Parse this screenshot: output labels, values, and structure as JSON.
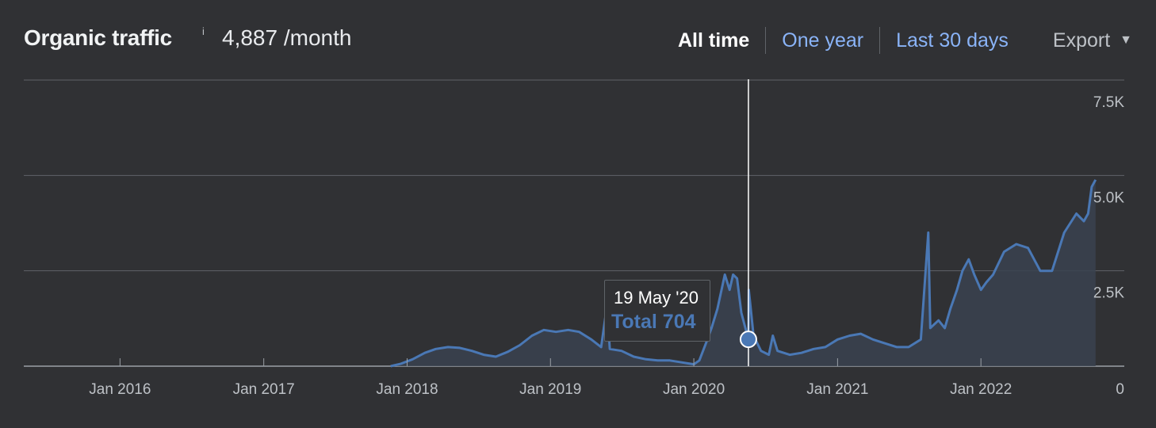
{
  "header": {
    "title": "Organic traffic",
    "info_icon": "i",
    "value": "4,887 /month"
  },
  "tabs": [
    {
      "label": "All time",
      "active": true
    },
    {
      "label": "One year",
      "active": false
    },
    {
      "label": "Last 30 days",
      "active": false
    }
  ],
  "export": {
    "label": "Export",
    "icon": "caret-down-icon"
  },
  "colors": {
    "line": "#4a78b5",
    "area": "#3a4250",
    "grid": "#5f6368",
    "background": "#303134"
  },
  "tooltip": {
    "date": "19 May '20",
    "total": "Total 704"
  },
  "chart_data": {
    "type": "area",
    "title": "Organic traffic",
    "y_axis_side": "right",
    "ylim": [
      0,
      7500
    ],
    "yticks": [
      7500,
      5000,
      2500,
      0
    ],
    "ytick_labels": [
      "7.5K",
      "5.0K",
      "2.5K",
      "0"
    ],
    "xlim": [
      "2015-05-01",
      "2023-01-01"
    ],
    "xticks": [
      "2016-01-01",
      "2017-01-01",
      "2018-01-01",
      "2019-01-01",
      "2020-01-01",
      "2021-01-01",
      "2022-01-01"
    ],
    "xtick_labels": [
      "Jan 2016",
      "Jan 2017",
      "Jan 2018",
      "Jan 2019",
      "Jan 2020",
      "Jan 2021",
      "Jan 2022"
    ],
    "grid": true,
    "highlight": {
      "date": "2020-05-19",
      "value": 704
    },
    "series": [
      {
        "points": [
          [
            "2017-11-20",
            0
          ],
          [
            "2017-12-15",
            60
          ],
          [
            "2018-01-15",
            180
          ],
          [
            "2018-02-15",
            350
          ],
          [
            "2018-03-15",
            450
          ],
          [
            "2018-04-15",
            500
          ],
          [
            "2018-05-15",
            480
          ],
          [
            "2018-06-15",
            400
          ],
          [
            "2018-07-15",
            300
          ],
          [
            "2018-08-15",
            250
          ],
          [
            "2018-09-15",
            380
          ],
          [
            "2018-10-15",
            550
          ],
          [
            "2018-11-15",
            800
          ],
          [
            "2018-12-15",
            950
          ],
          [
            "2019-01-15",
            900
          ],
          [
            "2019-02-15",
            950
          ],
          [
            "2019-03-15",
            900
          ],
          [
            "2019-04-15",
            700
          ],
          [
            "2019-05-10",
            500
          ],
          [
            "2019-05-25",
            1600
          ],
          [
            "2019-06-01",
            450
          ],
          [
            "2019-07-01",
            400
          ],
          [
            "2019-08-01",
            250
          ],
          [
            "2019-09-01",
            180
          ],
          [
            "2019-10-01",
            150
          ],
          [
            "2019-11-01",
            150
          ],
          [
            "2019-12-01",
            100
          ],
          [
            "2020-01-01",
            50
          ],
          [
            "2020-01-15",
            150
          ],
          [
            "2020-02-01",
            600
          ],
          [
            "2020-02-15",
            1000
          ],
          [
            "2020-03-01",
            1500
          ],
          [
            "2020-03-20",
            2400
          ],
          [
            "2020-04-01",
            2000
          ],
          [
            "2020-04-10",
            2400
          ],
          [
            "2020-04-20",
            2300
          ],
          [
            "2020-05-01",
            1400
          ],
          [
            "2020-05-19",
            704
          ],
          [
            "2020-05-20",
            2000
          ],
          [
            "2020-06-01",
            800
          ],
          [
            "2020-06-20",
            400
          ],
          [
            "2020-07-10",
            300
          ],
          [
            "2020-07-20",
            800
          ],
          [
            "2020-08-01",
            400
          ],
          [
            "2020-09-01",
            300
          ],
          [
            "2020-10-01",
            350
          ],
          [
            "2020-11-01",
            450
          ],
          [
            "2020-12-01",
            500
          ],
          [
            "2021-01-01",
            700
          ],
          [
            "2021-02-01",
            800
          ],
          [
            "2021-03-01",
            850
          ],
          [
            "2021-04-01",
            700
          ],
          [
            "2021-05-01",
            600
          ],
          [
            "2021-06-01",
            500
          ],
          [
            "2021-07-01",
            500
          ],
          [
            "2021-08-01",
            700
          ],
          [
            "2021-08-20",
            3500
          ],
          [
            "2021-08-25",
            1000
          ],
          [
            "2021-09-15",
            1200
          ],
          [
            "2021-10-01",
            1000
          ],
          [
            "2021-10-15",
            1500
          ],
          [
            "2021-11-01",
            2000
          ],
          [
            "2021-11-15",
            2500
          ],
          [
            "2021-12-01",
            2800
          ],
          [
            "2021-12-15",
            2400
          ],
          [
            "2022-01-01",
            2000
          ],
          [
            "2022-01-15",
            2200
          ],
          [
            "2022-02-01",
            2400
          ],
          [
            "2022-03-01",
            3000
          ],
          [
            "2022-04-01",
            3200
          ],
          [
            "2022-05-01",
            3100
          ],
          [
            "2022-06-01",
            2500
          ],
          [
            "2022-07-01",
            2500
          ],
          [
            "2022-08-01",
            3500
          ],
          [
            "2022-09-01",
            4000
          ],
          [
            "2022-09-20",
            3800
          ],
          [
            "2022-10-01",
            4000
          ],
          [
            "2022-10-10",
            4700
          ],
          [
            "2022-10-20",
            4887
          ]
        ]
      }
    ]
  }
}
